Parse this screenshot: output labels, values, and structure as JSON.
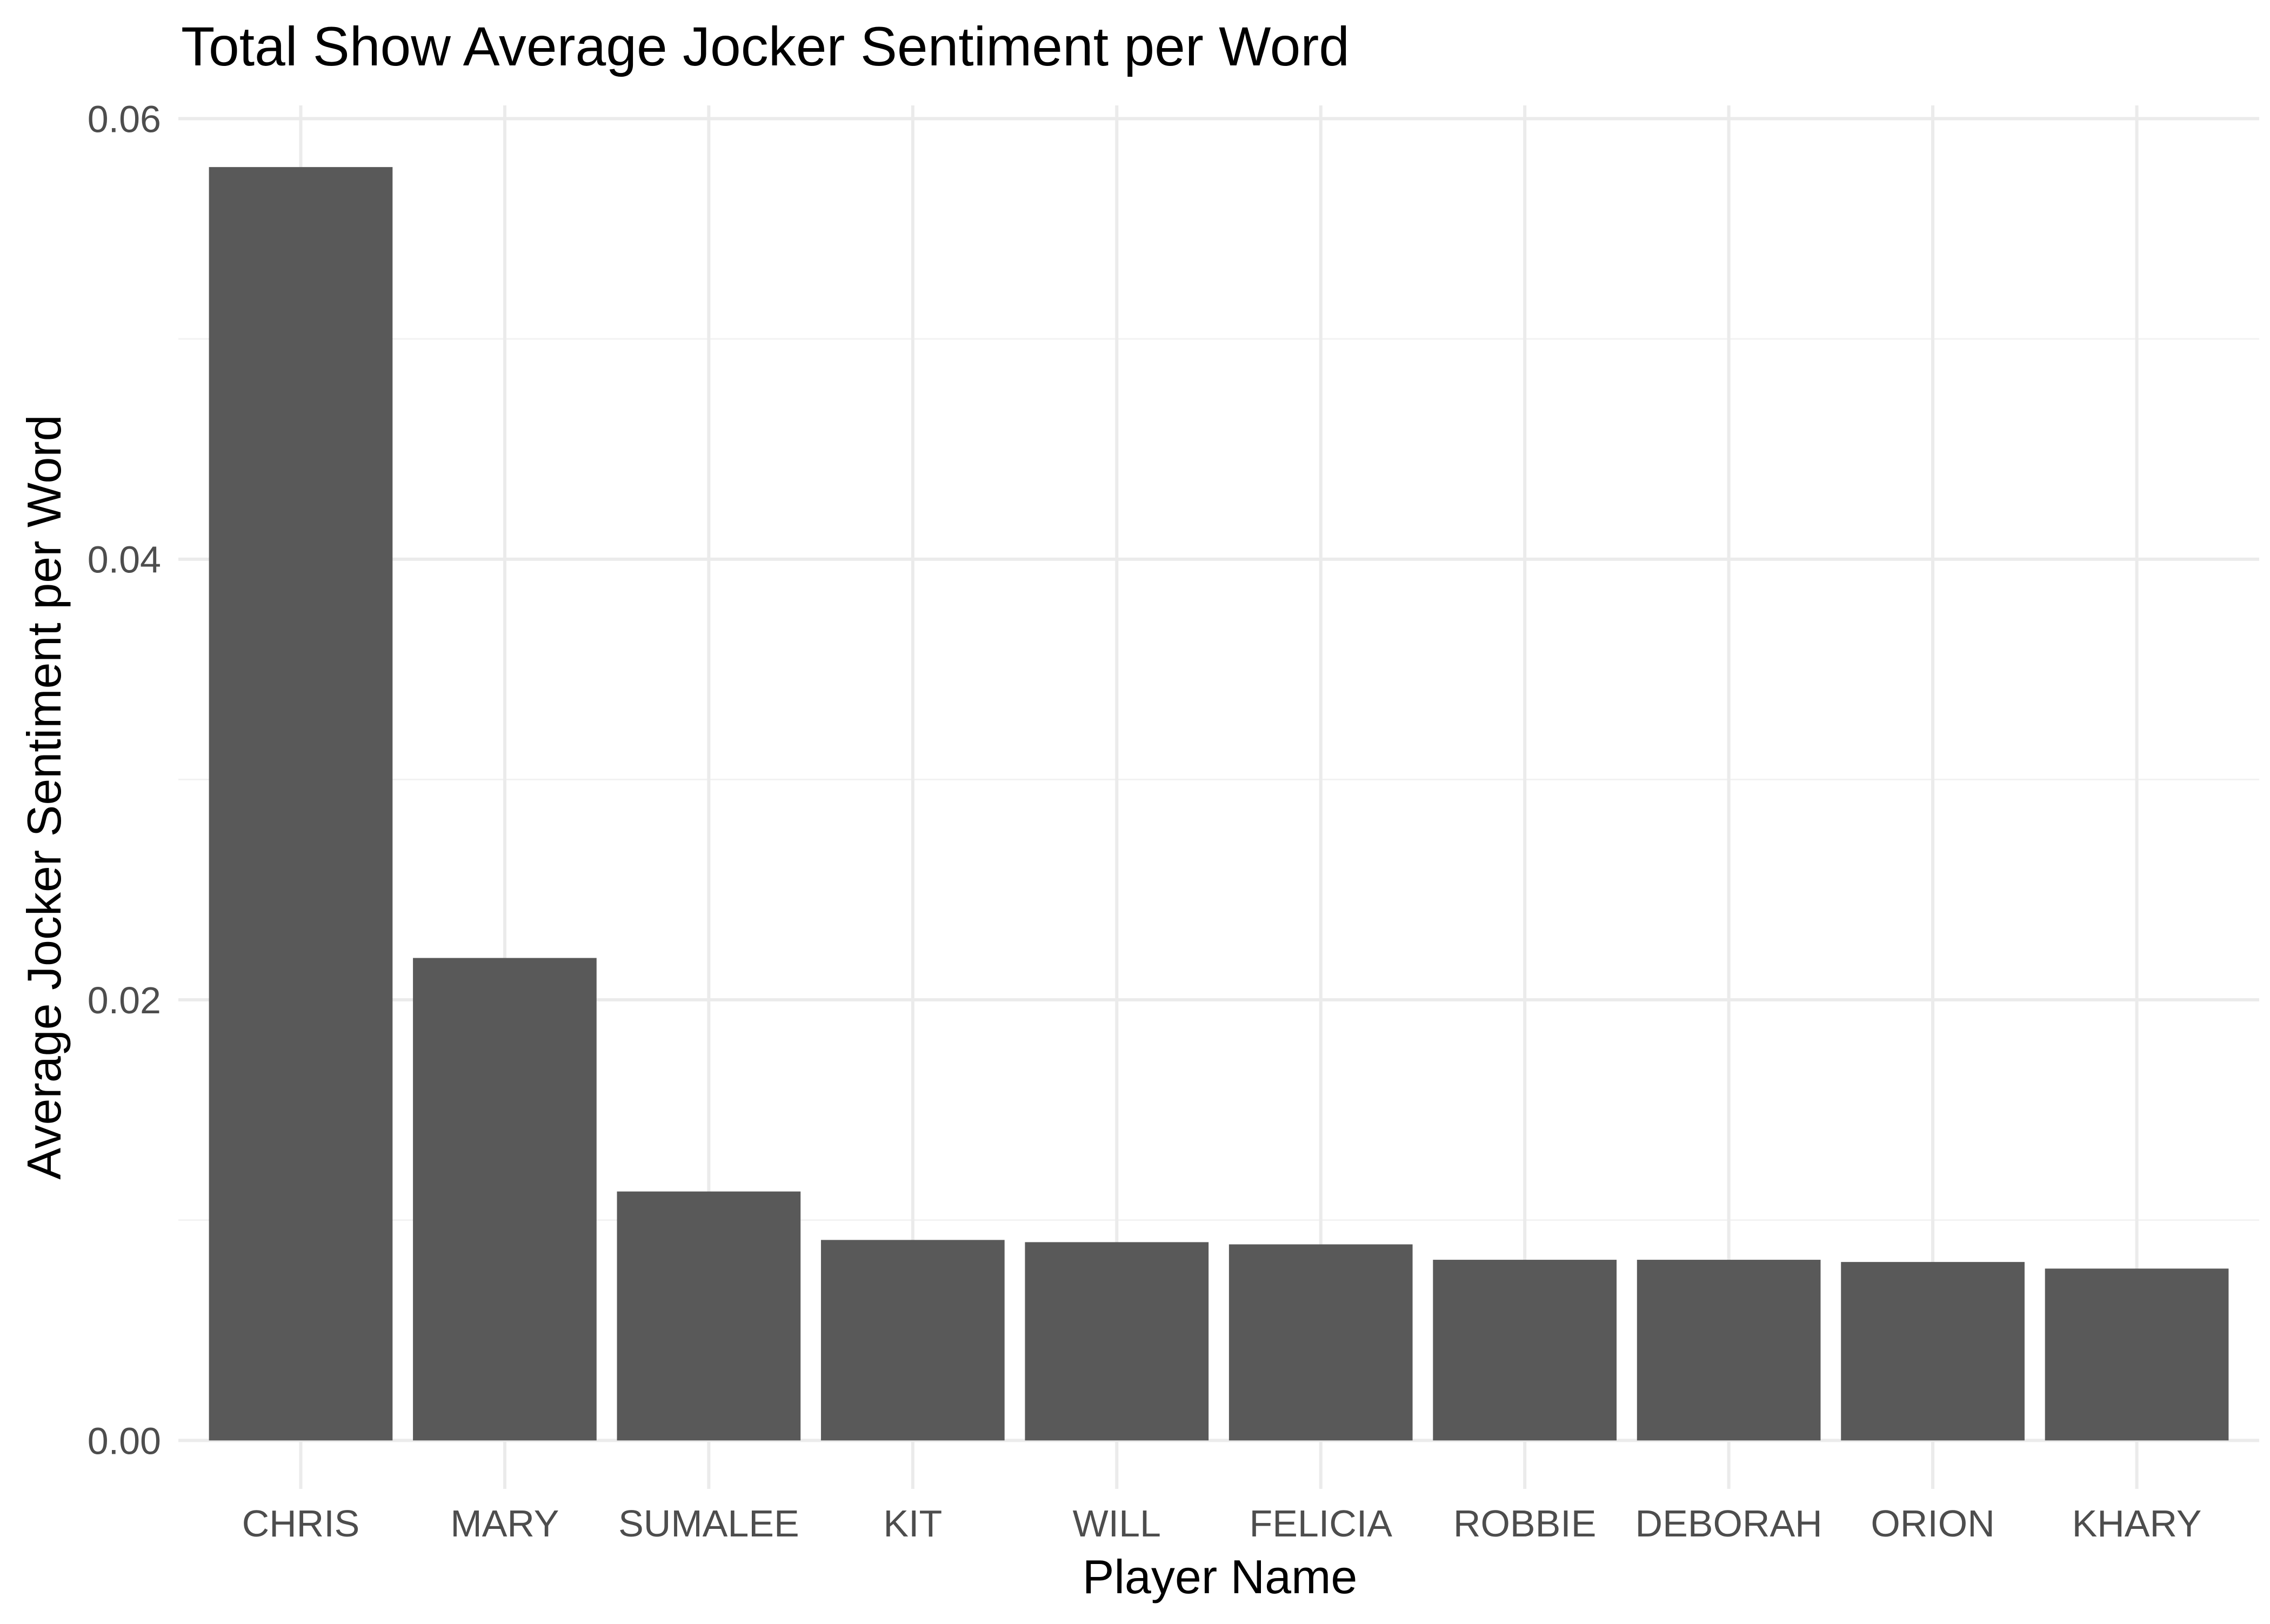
{
  "chart_data": {
    "type": "bar",
    "title": "Total Show Average Jocker Sentiment per Word",
    "xlabel": "Player Name",
    "ylabel": "Average Jocker Sentiment per Word",
    "categories": [
      "CHRIS",
      "MARY",
      "SUMALEE",
      "KIT",
      "WILL",
      "FELICIA",
      "ROBBIE",
      "DEBORAH",
      "ORION",
      "KHARY"
    ],
    "values": [
      0.0578,
      0.0219,
      0.0113,
      0.0091,
      0.009,
      0.0089,
      0.0082,
      0.0082,
      0.0081,
      0.0078
    ],
    "ylim": [
      -0.0022,
      0.0606
    ],
    "yticks": [
      0.0,
      0.02,
      0.04,
      0.06
    ],
    "ytick_labels": [
      "0.00",
      "0.02",
      "0.04",
      "0.06"
    ],
    "grid": true,
    "legend": "none",
    "colors": {
      "bar": "#595959",
      "grid_major": "#ebebeb",
      "grid_minor": "#f2f2f2",
      "tick_label": "#4d4d4d",
      "axis_title": "#000000"
    }
  }
}
